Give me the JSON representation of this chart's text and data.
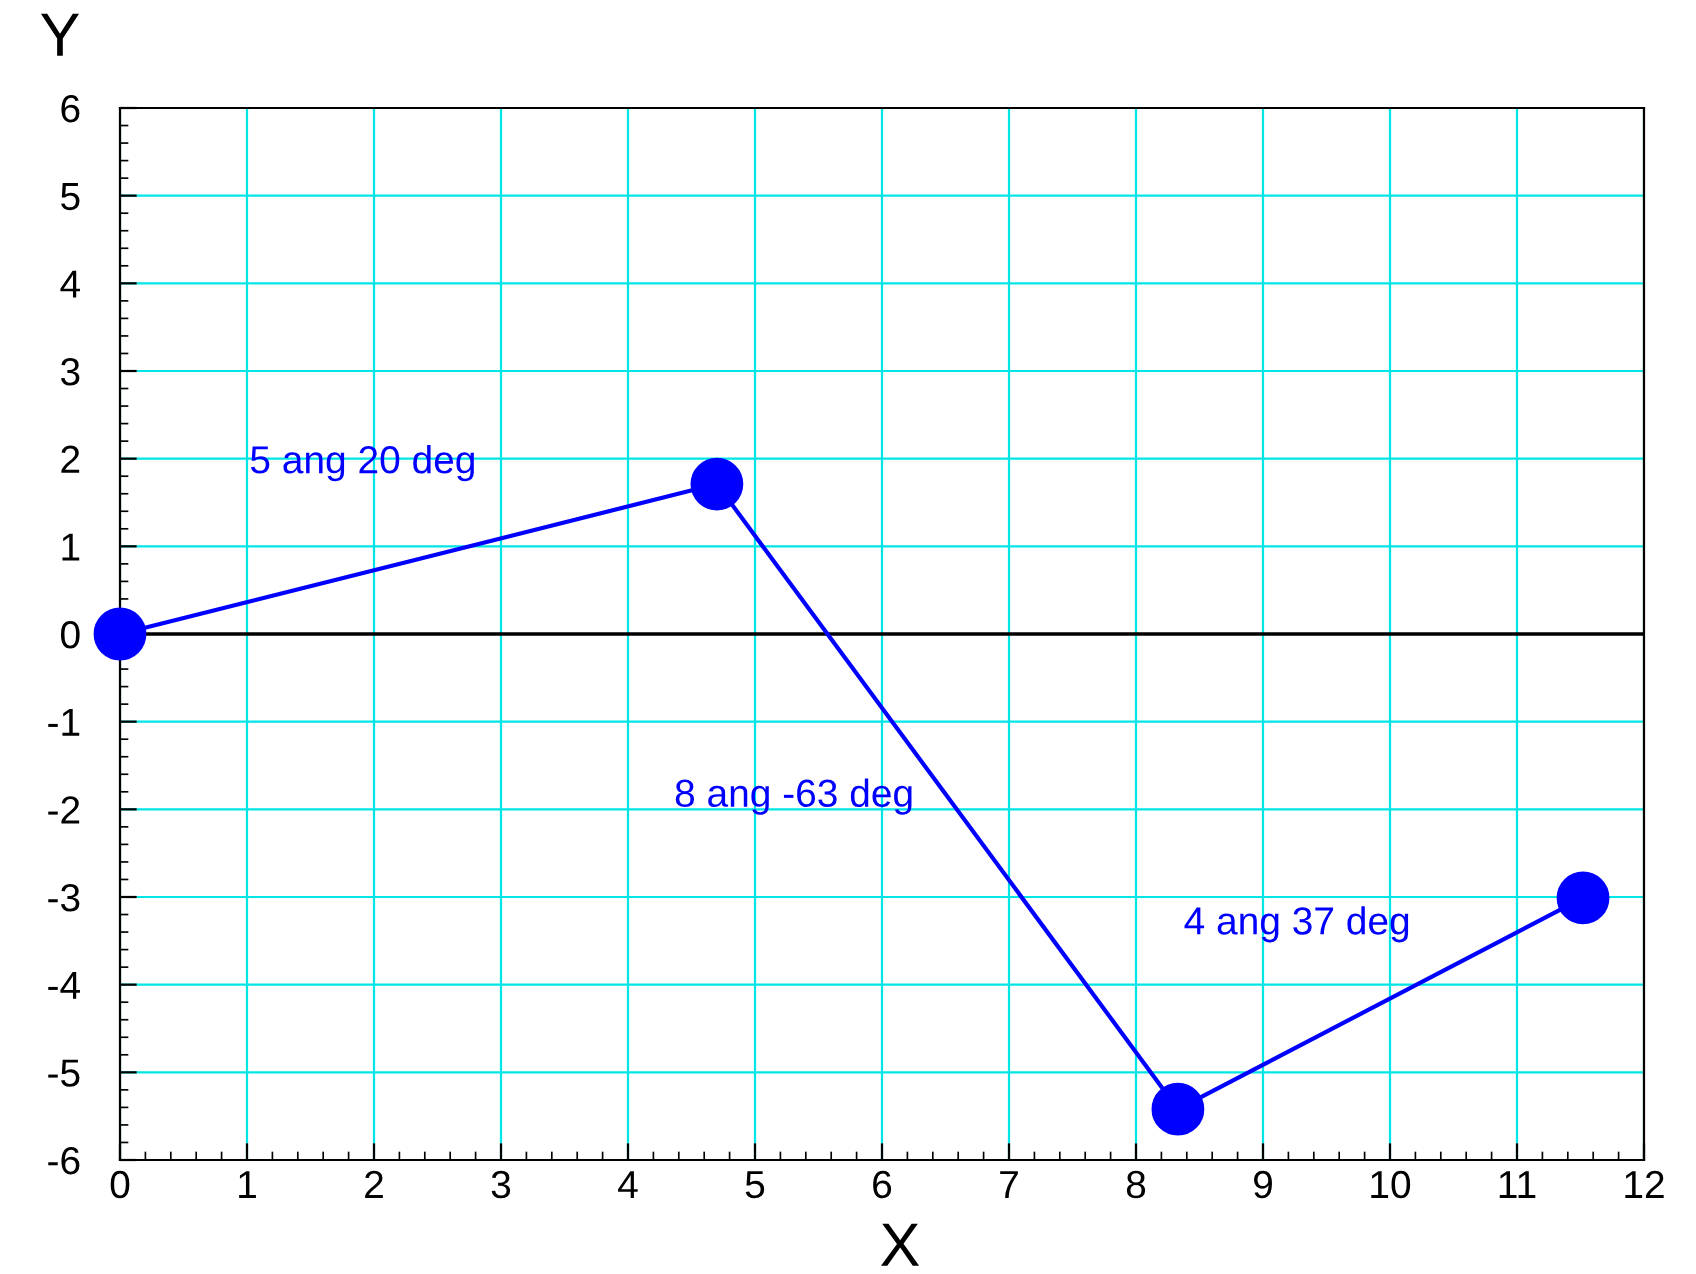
{
  "chart_data": {
    "type": "line",
    "xlabel": "X",
    "ylabel": "Y",
    "x": [
      0,
      4.7,
      8.33,
      11.52
    ],
    "series": [
      {
        "color": "#0000ff",
        "values": [
          0,
          1.71,
          -5.42,
          -3.01
        ]
      }
    ],
    "xlim": [
      0,
      12
    ],
    "ylim": [
      -6,
      6
    ],
    "xticks": [
      0,
      1,
      2,
      3,
      4,
      5,
      6,
      7,
      8,
      9,
      10,
      11,
      12
    ],
    "yticks": [
      -6,
      -5,
      -4,
      -3,
      -2,
      -1,
      0,
      1,
      2,
      3,
      4,
      5,
      6
    ],
    "grid": true,
    "marker": "circle",
    "line_style": "solid",
    "ref_lines": [
      {
        "axis": "y",
        "value": 0,
        "color": "#000000"
      }
    ],
    "annotations": [
      "5 ang 20 deg",
      "8 ang -63 deg",
      "4 ang 37 deg"
    ]
  }
}
